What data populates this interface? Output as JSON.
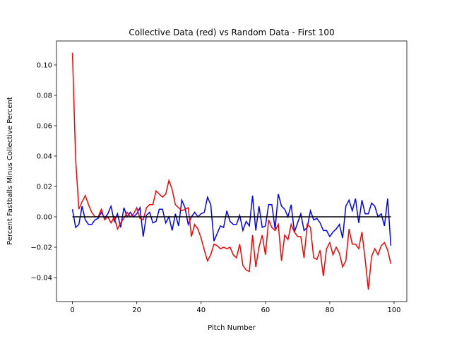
{
  "chart_data": {
    "type": "line",
    "title": "Collective Data (red) vs Random Data - First 100",
    "x_label": "Pitch Number",
    "y_label": "Percent Fastballs Minus Collective Percent",
    "x": [
      0,
      1,
      2,
      3,
      4,
      5,
      6,
      7,
      8,
      9,
      10,
      11,
      12,
      13,
      14,
      15,
      16,
      17,
      18,
      19,
      20,
      21,
      22,
      23,
      24,
      25,
      26,
      27,
      28,
      29,
      30,
      31,
      32,
      33,
      34,
      35,
      36,
      37,
      38,
      39,
      40,
      41,
      42,
      43,
      44,
      45,
      46,
      47,
      48,
      49,
      50,
      51,
      52,
      53,
      54,
      55,
      56,
      57,
      58,
      59,
      60,
      61,
      62,
      63,
      64,
      65,
      66,
      67,
      68,
      69,
      70,
      71,
      72,
      73,
      74,
      75,
      76,
      77,
      78,
      79,
      80,
      81,
      82,
      83,
      84,
      85,
      86,
      87,
      88,
      89,
      90,
      91,
      92,
      93,
      94,
      95,
      96,
      97,
      98,
      99
    ],
    "series": [
      {
        "color": "#0000ff",
        "values": [
          0.005,
          -0.007,
          -0.005,
          0.007,
          -0.002,
          -0.005,
          -0.005,
          -0.002,
          -0.001,
          0.003,
          -0.001,
          0.002,
          0.007,
          -0.003,
          0.002,
          -0.007,
          0.006,
          0.0,
          0.003,
          0.0,
          0.002,
          0.006,
          -0.013,
          0.001,
          0.003,
          -0.004,
          -0.003,
          0.005,
          0.005,
          -0.004,
          0.0,
          -0.009,
          0.002,
          -0.006,
          0.011,
          0.006,
          -0.005,
          0.0,
          0.003,
          0.0,
          0.002,
          0.003,
          0.013,
          0.008,
          -0.016,
          -0.011,
          -0.006,
          -0.007,
          0.004,
          -0.003,
          -0.005,
          -0.005,
          0.001,
          -0.009,
          -0.003,
          -0.006,
          0.014,
          -0.009,
          0.007,
          -0.007,
          -0.006,
          0.008,
          0.008,
          -0.008,
          0.015,
          0.007,
          0.005,
          0.0,
          0.008,
          -0.01,
          -0.004,
          0.002,
          -0.009,
          -0.007,
          0.004,
          -0.002,
          -0.001,
          -0.004,
          -0.009,
          -0.009,
          -0.013,
          -0.01,
          -0.008,
          -0.005,
          -0.014,
          0.007,
          0.011,
          0.004,
          0.012,
          -0.004,
          0.011,
          0.002,
          0.002,
          0.009,
          0.007,
          0.0,
          0.002,
          -0.006,
          0.012,
          -0.019
        ]
      },
      {
        "color": "#ff0000",
        "values": [
          0.108,
          0.038,
          0.005,
          0.01,
          0.014,
          0.008,
          0.003,
          0.0,
          0.0,
          0.005,
          -0.002,
          0.0,
          -0.004,
          0.0,
          -0.008,
          -0.004,
          -0.001,
          0.003,
          0.0,
          0.002,
          0.006,
          -0.001,
          -0.002,
          0.006,
          0.008,
          0.008,
          0.017,
          0.015,
          0.013,
          0.015,
          0.024,
          0.018,
          0.008,
          0.006,
          0.004,
          0.005,
          0.006,
          -0.013,
          -0.005,
          -0.008,
          -0.014,
          -0.022,
          -0.029,
          -0.025,
          -0.018,
          -0.019,
          -0.021,
          -0.02,
          -0.021,
          -0.02,
          -0.025,
          -0.027,
          -0.018,
          -0.032,
          -0.035,
          -0.036,
          -0.012,
          -0.033,
          -0.02,
          -0.012,
          -0.025,
          -0.002,
          -0.007,
          -0.009,
          -0.005,
          -0.029,
          -0.012,
          -0.015,
          -0.005,
          -0.01,
          -0.013,
          -0.013,
          -0.027,
          -0.005,
          -0.007,
          -0.027,
          -0.028,
          -0.022,
          -0.039,
          -0.021,
          -0.017,
          -0.025,
          -0.02,
          -0.024,
          -0.033,
          -0.029,
          -0.008,
          -0.018,
          -0.018,
          -0.021,
          -0.01,
          -0.028,
          -0.048,
          -0.026,
          -0.021,
          -0.025,
          -0.019,
          -0.017,
          -0.022,
          -0.031
        ]
      },
      {
        "color": "#000000",
        "values": [
          0,
          0,
          0,
          0,
          0,
          0,
          0,
          0,
          0,
          0,
          0,
          0,
          0,
          0,
          0,
          0,
          0,
          0,
          0,
          0,
          0,
          0,
          0,
          0,
          0,
          0,
          0,
          0,
          0,
          0,
          0,
          0,
          0,
          0,
          0,
          0,
          0,
          0,
          0,
          0,
          0,
          0,
          0,
          0,
          0,
          0,
          0,
          0,
          0,
          0,
          0,
          0,
          0,
          0,
          0,
          0,
          0,
          0,
          0,
          0,
          0,
          0,
          0,
          0,
          0,
          0,
          0,
          0,
          0,
          0,
          0,
          0,
          0,
          0,
          0,
          0,
          0,
          0,
          0,
          0,
          0,
          0,
          0,
          0,
          0,
          0,
          0,
          0,
          0,
          0,
          0,
          0,
          0,
          0,
          0,
          0,
          0,
          0,
          0,
          0
        ]
      }
    ],
    "xlim": [
      -4.95,
      103.95
    ],
    "ylim": [
      -0.0558,
      0.1158
    ],
    "xticks": [
      0,
      20,
      40,
      60,
      80,
      100
    ],
    "yticks": [
      {
        "value": -0.04,
        "label": "−0.04"
      },
      {
        "value": -0.02,
        "label": "−0.02"
      },
      {
        "value": 0,
        "label": "0.00"
      },
      {
        "value": 0.02,
        "label": "0.02"
      },
      {
        "value": 0.04,
        "label": "0.04"
      },
      {
        "value": 0.06,
        "label": "0.06"
      },
      {
        "value": 0.08,
        "label": "0.08"
      },
      {
        "value": 0.1,
        "label": "0.10"
      }
    ]
  }
}
